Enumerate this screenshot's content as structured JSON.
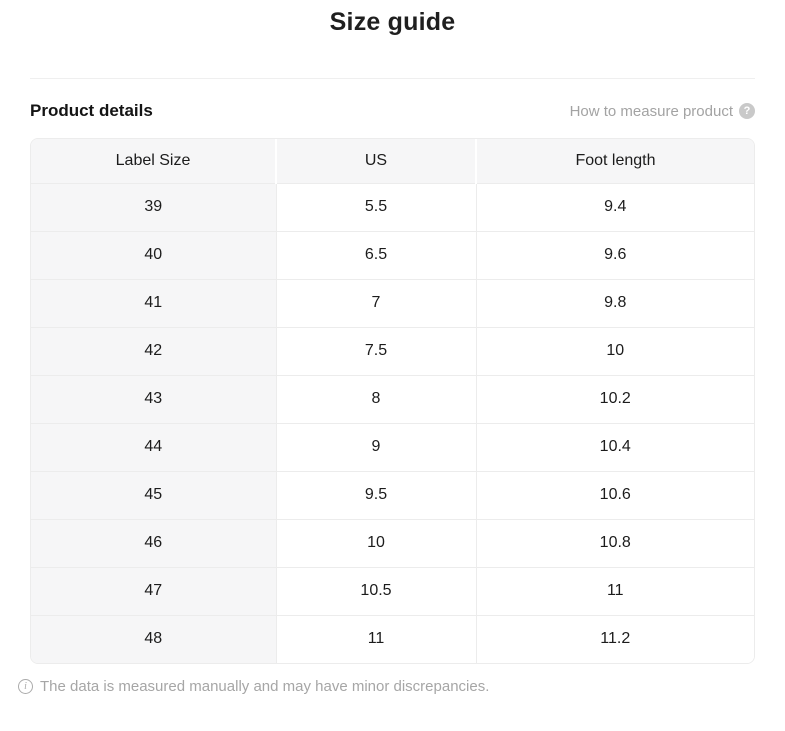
{
  "page": {
    "title": "Size guide"
  },
  "section": {
    "heading": "Product details",
    "help_link_label": "How to measure product",
    "help_icon_glyph": "?"
  },
  "table": {
    "columns": [
      "Label Size",
      "US",
      "Foot length"
    ],
    "rows": [
      [
        "39",
        "5.5",
        "9.4"
      ],
      [
        "40",
        "6.5",
        "9.6"
      ],
      [
        "41",
        "7",
        "9.8"
      ],
      [
        "42",
        "7.5",
        "10"
      ],
      [
        "43",
        "8",
        "10.2"
      ],
      [
        "44",
        "9",
        "10.4"
      ],
      [
        "45",
        "9.5",
        "10.6"
      ],
      [
        "46",
        "10",
        "10.8"
      ],
      [
        "47",
        "10.5",
        "11"
      ],
      [
        "48",
        "11",
        "11.2"
      ]
    ]
  },
  "footer": {
    "note": "The data is measured manually and may have minor discrepancies.",
    "info_icon_glyph": "i"
  },
  "colors": {
    "table_shaded_bg": "#f6f6f7",
    "table_border": "#ececec",
    "text_primary": "#1c1c1c",
    "text_muted": "#a6a6a6",
    "help_icon_bg": "#c9c9c9"
  }
}
